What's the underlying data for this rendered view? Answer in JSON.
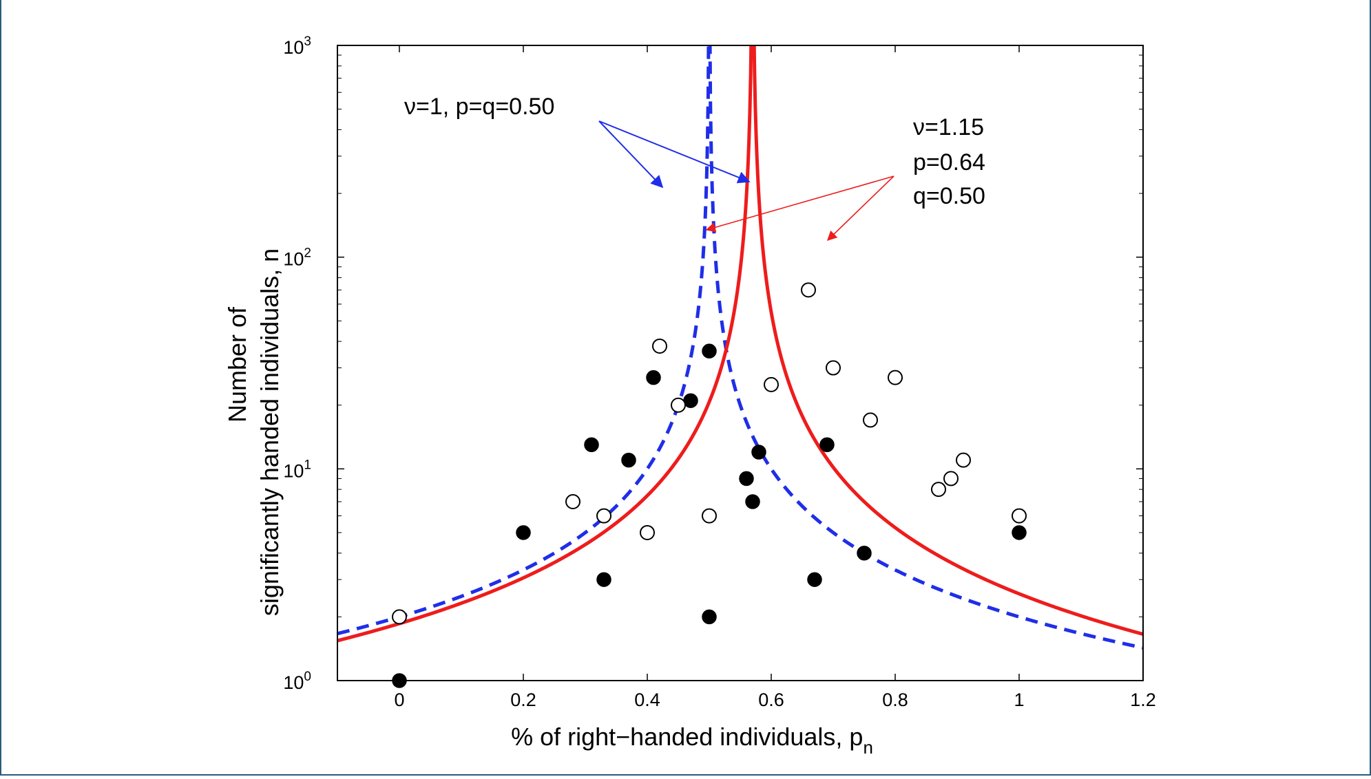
{
  "colors": {
    "frame": "#2a5a7a",
    "curve_v1": "#1f2ee8",
    "curve_v115": "#ee1c1c",
    "axis": "#000000",
    "marker": "#000000"
  },
  "chart_data": {
    "type": "scatter",
    "title": "",
    "xlabel": "% of right−handed individuals, p",
    "xlabel_sub": "n",
    "ylabel_line1": "Number of",
    "ylabel_line2": "significantly handed individuals, n",
    "xlim": [
      -0.1,
      1.2
    ],
    "ylim": [
      1,
      1000
    ],
    "yscale": "log",
    "x_ticks": [
      {
        "value": 0,
        "label": "0"
      },
      {
        "value": 0.2,
        "label": "0.2"
      },
      {
        "value": 0.4,
        "label": "0.4"
      },
      {
        "value": 0.6,
        "label": "0.6"
      },
      {
        "value": 0.8,
        "label": "0.8"
      },
      {
        "value": 1.0,
        "label": "1"
      },
      {
        "value": 1.2,
        "label": "1.2"
      }
    ],
    "y_ticks": [
      {
        "value": 1,
        "base": "10",
        "exp": "0"
      },
      {
        "value": 10,
        "base": "10",
        "exp": "1"
      },
      {
        "value": 100,
        "base": "10",
        "exp": "2"
      },
      {
        "value": 1000,
        "base": "10",
        "exp": "3"
      }
    ],
    "series": [
      {
        "name": "filled",
        "marker": "filled-circle",
        "points": [
          [
            0,
            1
          ],
          [
            0.2,
            5
          ],
          [
            0.31,
            13
          ],
          [
            0.33,
            3
          ],
          [
            0.37,
            11
          ],
          [
            0.41,
            27
          ],
          [
            0.47,
            21
          ],
          [
            0.5,
            36
          ],
          [
            0.5,
            2
          ],
          [
            0.56,
            9
          ],
          [
            0.57,
            7
          ],
          [
            0.58,
            12
          ],
          [
            0.67,
            3
          ],
          [
            0.69,
            13
          ],
          [
            0.75,
            4
          ],
          [
            1.0,
            5
          ]
        ]
      },
      {
        "name": "open",
        "marker": "open-circle",
        "points": [
          [
            0,
            2
          ],
          [
            0.28,
            7
          ],
          [
            0.33,
            6
          ],
          [
            0.4,
            5
          ],
          [
            0.42,
            38
          ],
          [
            0.45,
            20
          ],
          [
            0.5,
            6
          ],
          [
            0.6,
            25
          ],
          [
            0.66,
            70
          ],
          [
            0.7,
            30
          ],
          [
            0.76,
            17
          ],
          [
            0.8,
            27
          ],
          [
            0.87,
            8
          ],
          [
            0.89,
            9
          ],
          [
            0.91,
            11
          ],
          [
            1.0,
            6
          ]
        ]
      }
    ],
    "curves": [
      {
        "name": "ν=1, p=q=0.50",
        "style": "dashed",
        "color_key": "curve_v1",
        "center": 0.5,
        "k": 1.0,
        "alpha": 1.0
      },
      {
        "name": "ν=1.15, p=0.64, q=0.50",
        "style": "solid",
        "color_key": "curve_v115",
        "center": 0.57,
        "k": 0.974,
        "alpha": 1.15
      }
    ],
    "annotations": {
      "blue_label": "ν=1, p=q=0.50",
      "red_label_line1": "ν=1.15",
      "red_label_line2": "p=0.64",
      "red_label_line3": "q=0.50"
    }
  }
}
